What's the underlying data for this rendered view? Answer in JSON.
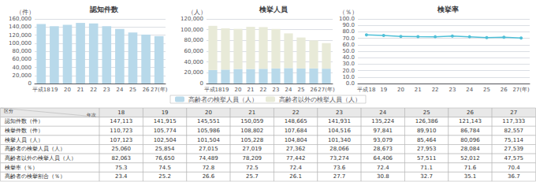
{
  "chart_data": [
    {
      "type": "bar",
      "title": "認知件数",
      "ylabel": "（件）",
      "categories": [
        "平成18",
        "19",
        "20",
        "21",
        "22",
        "23",
        "24",
        "25",
        "26",
        "27(年)"
      ],
      "values": [
        147113,
        141915,
        145551,
        150059,
        148665,
        141931,
        135224,
        126386,
        121143,
        117333
      ],
      "color": "#b8d9ea",
      "ylim": [
        0,
        160000
      ],
      "yticks": [
        0,
        {
          "value": 20000,
          "label": "20,000"
        },
        {
          "value": 40000,
          "label": "40,000"
        },
        {
          "value": 60000,
          "label": "60,000"
        },
        {
          "value": 80000,
          "label": "80,000"
        },
        {
          "value": 100000,
          "label": "100,000"
        },
        {
          "value": 120000,
          "label": "120,000"
        },
        {
          "value": 140000,
          "label": "140,000"
        },
        {
          "value": 160000,
          "label": "160,000"
        }
      ],
      "grid": true
    },
    {
      "type": "bar",
      "title": "検挙人員",
      "ylabel": "（人）",
      "categories": [
        "平成18",
        "19",
        "20",
        "21",
        "22",
        "23",
        "24",
        "25",
        "26",
        "27(年)"
      ],
      "series": [
        {
          "name": "高齢者の検挙人員（人）",
          "color": "#b8d9ea",
          "values": [
            25060,
            25854,
            27015,
            27019,
            27362,
            28066,
            28673,
            27953,
            28084,
            27539
          ]
        },
        {
          "name": "高齢者以外の検挙人員（人）",
          "color": "#e8ead8",
          "values": [
            82063,
            76650,
            74489,
            78209,
            77442,
            73274,
            64406,
            57511,
            52012,
            47575
          ]
        }
      ],
      "stacked": true,
      "legend": "bottom",
      "ylim": [
        0,
        120000
      ],
      "yticks": [
        0,
        {
          "value": 20000,
          "label": "20,000"
        },
        {
          "value": 40000,
          "label": "40,000"
        },
        {
          "value": 60000,
          "label": "60,000"
        },
        {
          "value": 80000,
          "label": "80,000"
        },
        {
          "value": 100000,
          "label": "100,000"
        },
        {
          "value": 120000,
          "label": "120,000"
        }
      ],
      "grid": true
    },
    {
      "type": "line",
      "title": "検挙率",
      "ylabel": "（％）",
      "categories": [
        "平成18",
        "19",
        "20",
        "21",
        "22",
        "23",
        "24",
        "25",
        "26",
        "27(年)"
      ],
      "values": [
        75.3,
        74.5,
        72.8,
        72.5,
        72.4,
        73.6,
        72.4,
        71.1,
        71.6,
        70.4
      ],
      "color": "#50c0d8",
      "marker": "circle",
      "ylim": [
        0,
        100
      ],
      "yticks": [
        {
          "value": 0,
          "label": "0.0"
        },
        {
          "value": 10,
          "label": "10.0"
        },
        {
          "value": 20,
          "label": "20.0"
        },
        {
          "value": 30,
          "label": "30.0"
        },
        {
          "value": 40,
          "label": "40.0"
        },
        {
          "value": 50,
          "label": "50.0"
        },
        {
          "value": 60,
          "label": "60.0"
        },
        {
          "value": 70,
          "label": "70.0"
        },
        {
          "value": 80,
          "label": "80.0"
        },
        {
          "value": 90,
          "label": "90.0"
        },
        {
          "value": 100,
          "label": "100.0"
        }
      ],
      "grid": true
    },
    {
      "type": "table",
      "xlabel": "年次",
      "ylabel": "区分",
      "categories": [
        "18",
        "19",
        "20",
        "21",
        "22",
        "23",
        "24",
        "25",
        "26",
        "27"
      ],
      "series": [
        {
          "name": "認知件数（件）",
          "values": [
            147113,
            141915,
            145551,
            150059,
            148665,
            141931,
            135224,
            126386,
            121143,
            117333
          ],
          "value_labels": [
            "147,113",
            "141,915",
            "145,551",
            "150,059",
            "148,665",
            "141,931",
            "135,224",
            "126,386",
            "121,143",
            "117,333"
          ]
        },
        {
          "name": "検挙件数（件）",
          "values": [
            110723,
            105774,
            105986,
            108802,
            107684,
            104516,
            97841,
            89910,
            86784,
            82557
          ],
          "value_labels": [
            "110,723",
            "105,774",
            "105,986",
            "108,802",
            "107,684",
            "104,516",
            "97,841",
            "89,910",
            "86,784",
            "82,557"
          ]
        },
        {
          "name": "検挙人員（人）",
          "values": [
            107123,
            102504,
            101504,
            105228,
            104804,
            101340,
            93079,
            85464,
            80096,
            75114
          ],
          "value_labels": [
            "107,123",
            "102,504",
            "101,504",
            "105,228",
            "104,804",
            "101,340",
            "93,079",
            "85,464",
            "80,096",
            "75,114"
          ]
        },
        {
          "name": "高齢者の検挙人員（人）",
          "values": [
            25060,
            25854,
            27015,
            27019,
            27362,
            28066,
            28673,
            27953,
            28084,
            27539
          ],
          "value_labels": [
            "25,060",
            "25,854",
            "27,015",
            "27,019",
            "27,362",
            "28,066",
            "28,673",
            "27,953",
            "28,084",
            "27,539"
          ]
        },
        {
          "name": "高齢者以外の検挙人員（人）",
          "values": [
            82063,
            76650,
            74489,
            78209,
            77442,
            73274,
            64406,
            57511,
            52012,
            47575
          ],
          "value_labels": [
            "82,063",
            "76,650",
            "74,489",
            "78,209",
            "77,442",
            "73,274",
            "64,406",
            "57,511",
            "52,012",
            "47,575"
          ]
        },
        {
          "name": "検挙率（％）",
          "values": [
            75.3,
            74.5,
            72.8,
            72.5,
            72.4,
            73.6,
            72.4,
            71.1,
            71.6,
            70.4
          ]
        },
        {
          "name": "高齢者の検挙割合（％）",
          "values": [
            23.4,
            25.2,
            26.6,
            25.7,
            26.1,
            27.7,
            30.8,
            32.7,
            35.1,
            36.7
          ]
        }
      ]
    }
  ]
}
